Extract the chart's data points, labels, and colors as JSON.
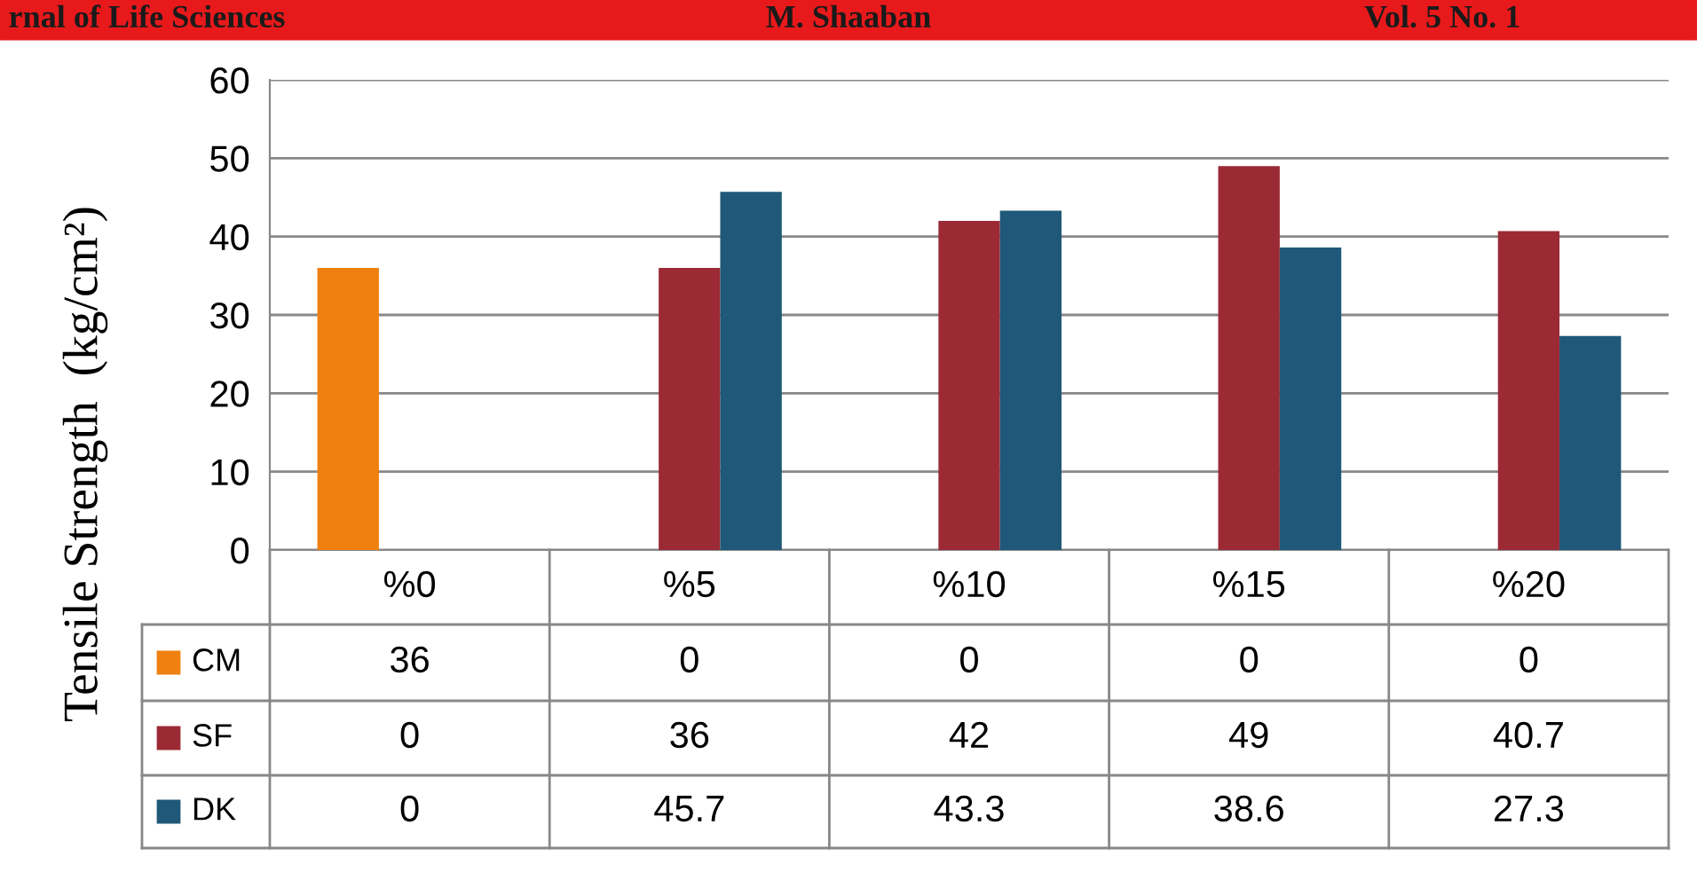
{
  "chart_data": {
    "type": "bar",
    "ylabel": "Tensile Strength  (kg/cm²)",
    "categories": [
      "%0",
      "%5",
      "%10",
      "%15",
      "%20"
    ],
    "series": [
      {
        "name": "CM",
        "color": "#f0800f",
        "values": [
          36,
          0,
          0,
          0,
          0
        ]
      },
      {
        "name": "SF",
        "color": "#9b2a35",
        "values": [
          0,
          36,
          42,
          49,
          40.7
        ]
      },
      {
        "name": "DK",
        "color": "#1f5878",
        "values": [
          0,
          45.7,
          43.3,
          38.6,
          27.3
        ]
      }
    ],
    "ylim": [
      0,
      60
    ],
    "yticks": [
      0,
      10,
      20,
      30,
      40,
      50,
      60
    ],
    "grid": "y",
    "legend": "bottom",
    "data_labels": true,
    "annotations": [
      "rnal of Life Sciences",
      "M. Shaaban",
      "Vol. 5 No. 1"
    ]
  }
}
